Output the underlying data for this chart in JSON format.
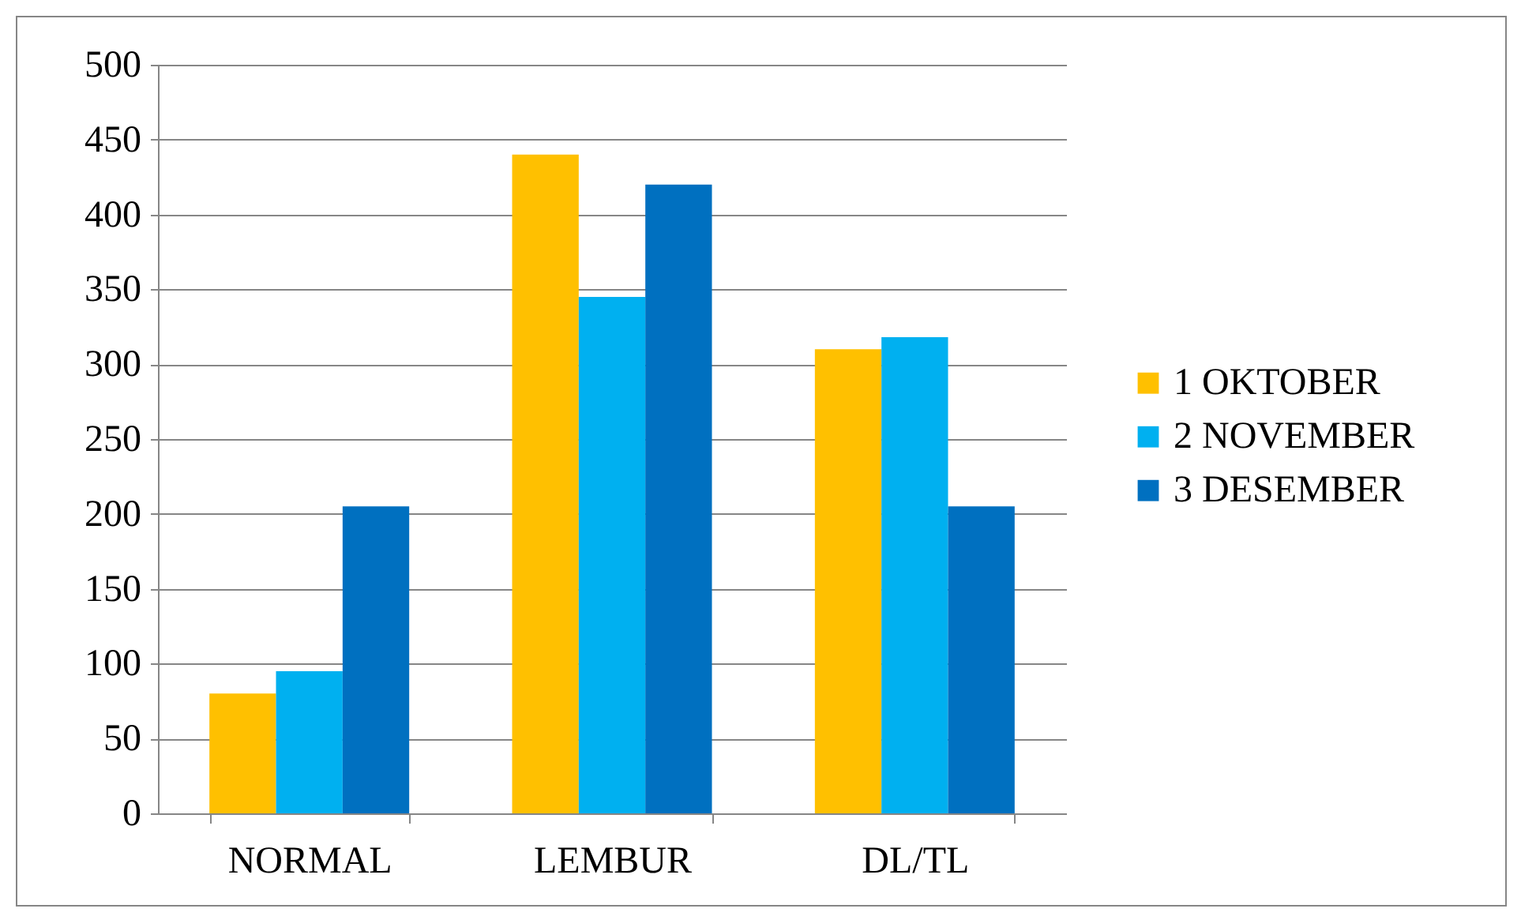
{
  "chart_data": {
    "type": "bar",
    "categories": [
      "NORMAL",
      "LEMBUR",
      "DL/TL"
    ],
    "series": [
      {
        "name": "1 OKTOBER",
        "color": "#ffc000",
        "values": [
          80,
          440,
          310
        ]
      },
      {
        "name": "2 NOVEMBER",
        "color": "#00b0f0",
        "values": [
          95,
          345,
          318
        ]
      },
      {
        "name": "3 DESEMBER",
        "color": "#0070c0",
        "values": [
          205,
          420,
          205
        ]
      }
    ],
    "ylim": [
      0,
      500
    ],
    "yticks": [
      0,
      50,
      100,
      150,
      200,
      250,
      300,
      350,
      400,
      450,
      500
    ],
    "grid": "y",
    "legend": "right"
  }
}
